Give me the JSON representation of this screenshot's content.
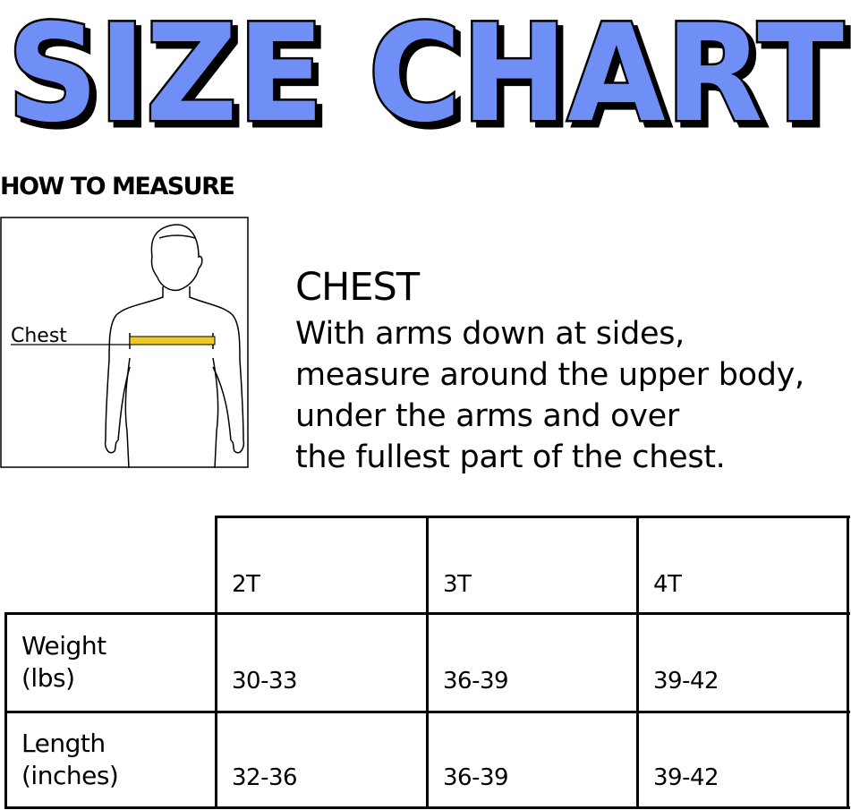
{
  "title": "SIZE CHART",
  "colors": {
    "title_fill": "#6f8ff6",
    "title_outline": "#000000",
    "tape": "#f2c724"
  },
  "how_to_measure": {
    "heading": "HOW TO MEASURE",
    "figure_label": "Chest"
  },
  "chest": {
    "title": "CHEST",
    "lines": [
      "With arms down at sides,",
      "measure around the upper body,",
      "under the arms and over",
      "the fullest part of the chest."
    ]
  },
  "table": {
    "columns": [
      "2T",
      "3T",
      "4T"
    ],
    "rows": [
      {
        "label_lines": [
          "Weight",
          "(lbs)"
        ],
        "values": [
          "30-33",
          "36-39",
          "39-42"
        ]
      },
      {
        "label_lines": [
          "Length",
          "(inches)"
        ],
        "values": [
          "32-36",
          "36-39",
          "39-42"
        ]
      }
    ]
  }
}
